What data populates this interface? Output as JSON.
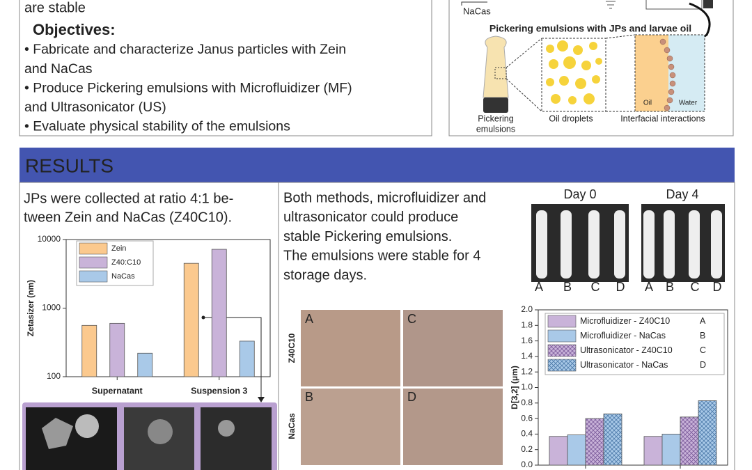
{
  "objectives": {
    "intro_tail": "are stable",
    "heading": "Objectives:",
    "items": [
      [
        "• Fabricate and characterize Janus particles with Zein",
        "and NaCas"
      ],
      [
        "• Produce Pickering emulsions with Microfluidizer (MF)",
        "and Ultrasonicator (US)"
      ],
      [
        "• Evaluate physical stability of the emulsions"
      ]
    ]
  },
  "diagram": {
    "nacas_label": "NaCas",
    "title": "Pickering emulsions with JPs and larvae oil",
    "oil": "Oil",
    "water": "Water",
    "captions": [
      [
        "Pickering",
        "emulsions"
      ],
      [
        "Oil droplets"
      ],
      [
        "Interfacial interactions"
      ]
    ]
  },
  "results": {
    "heading": "RESULTS",
    "text1": [
      "JPs were collected at ratio 4:1 be-",
      "tween Zein and NaCas (Z40C10)."
    ],
    "text2": [
      "Both methods, microfluidizer and",
      "ultrasonicator could produce",
      "stable Pickering emulsions.",
      "The emulsions were stable for 4",
      "storage days."
    ],
    "photos": {
      "days": [
        "Day 0",
        "Day 4"
      ],
      "tubes": [
        "A",
        "B",
        "C",
        "D"
      ]
    },
    "micrographs": {
      "rows": [
        "Z40C10",
        "NaCas"
      ],
      "panels": [
        "A",
        "C",
        "B",
        "D"
      ]
    }
  },
  "chart_data": [
    {
      "type": "bar",
      "ylabel": "Zetasizer (nm)",
      "categories": [
        "Supernatant",
        "Suspension 3"
      ],
      "series": [
        {
          "name": "Zein",
          "color": "#fbc98e",
          "values": [
            560,
            4500
          ]
        },
        {
          "name": "Z40:C10",
          "color": "#c9b3d9",
          "values": [
            600,
            7200
          ]
        },
        {
          "name": "NaCas",
          "color": "#a9c9e8",
          "values": [
            220,
            330
          ]
        }
      ],
      "log_scale": true,
      "ylim": [
        100,
        10000
      ],
      "yticks": [
        100,
        1000,
        10000
      ]
    },
    {
      "type": "bar",
      "ylabel": "D[3,2] (μm)",
      "categories": [
        null,
        null
      ],
      "series": [
        {
          "name": "Microfluidizer - Z40C10",
          "code": "A",
          "color": "#c9b3d9",
          "hatch": false,
          "values": [
            0.37,
            0.37
          ]
        },
        {
          "name": "Microfluidizer - NaCas",
          "code": "B",
          "color": "#a9c9e8",
          "hatch": false,
          "values": [
            0.39,
            0.4
          ]
        },
        {
          "name": "Ultrasonicator - Z40C10",
          "code": "C",
          "color": "#c9b3d9",
          "hatch": true,
          "values": [
            0.6,
            0.62
          ]
        },
        {
          "name": "Ultrasonicator - NaCas",
          "code": "D",
          "color": "#a9c9e8",
          "hatch": true,
          "values": [
            0.66,
            0.83
          ]
        }
      ],
      "log_scale": false,
      "ylim": [
        0,
        2
      ],
      "yticks": [
        {
          "value": 0,
          "label": "0.0"
        },
        0.2,
        0.4,
        0.6,
        0.8,
        {
          "value": 1,
          "label": "1.0"
        },
        1.2,
        1.4,
        1.6,
        1.8,
        {
          "value": 2,
          "label": "2.0"
        }
      ]
    }
  ]
}
